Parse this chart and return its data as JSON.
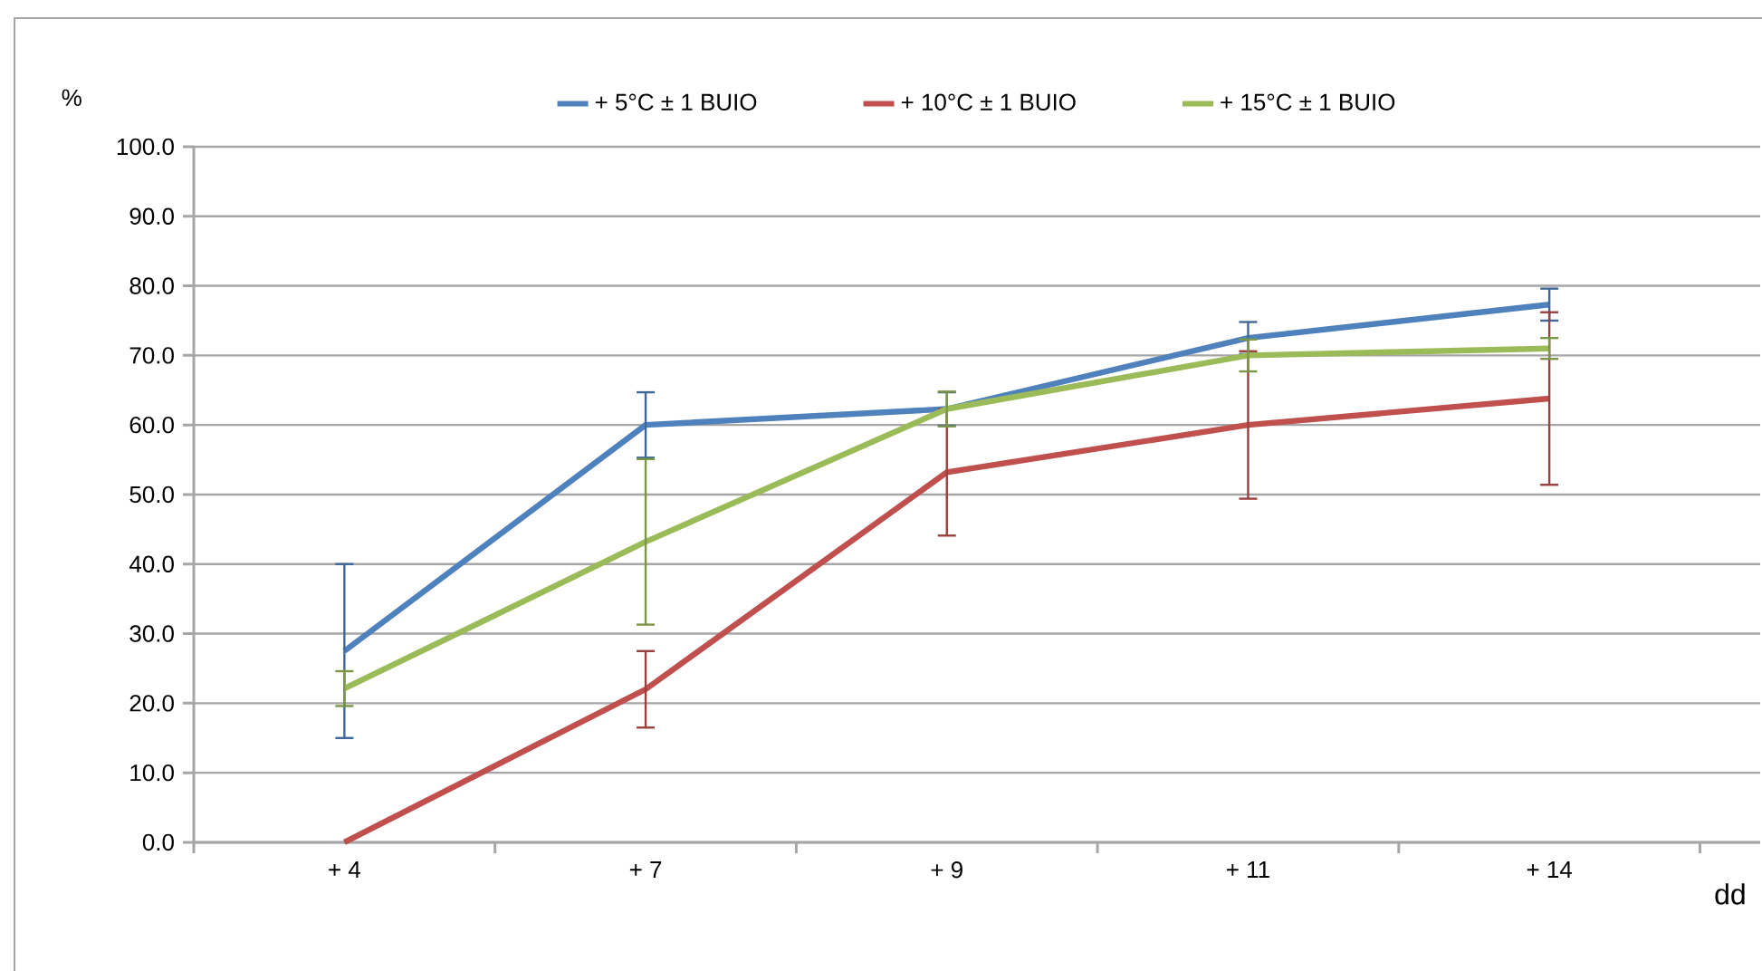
{
  "chart_data": {
    "type": "line",
    "xlabel": "dd",
    "ylabel": "%",
    "categories": [
      "+ 4",
      "+ 7",
      "+ 9",
      "+ 11",
      "+ 14"
    ],
    "series": [
      {
        "name": "+ 5°C ± 1 BUIO",
        "color": "#4f81bd",
        "values": [
          27.5,
          60.0,
          62.3,
          72.5,
          77.3
        ],
        "errors": [
          12.5,
          4.7,
          2.4,
          2.3,
          2.3
        ]
      },
      {
        "name": "+ 10°C ± 1 BUIO",
        "color": "#c0504d",
        "values": [
          0.0,
          22.0,
          53.2,
          60.0,
          63.8
        ],
        "errors": [
          null,
          5.5,
          9.1,
          10.6,
          12.4
        ]
      },
      {
        "name": "+ 15°C ± 1 BUIO",
        "color": "#9bbb59",
        "values": [
          22.1,
          43.2,
          62.3,
          70.0,
          71.0
        ],
        "errors": [
          2.5,
          11.9,
          2.5,
          2.3,
          1.5
        ]
      }
    ],
    "ylim": [
      0,
      100
    ],
    "yticks": [
      {
        "value": 0,
        "label": "0.0"
      },
      {
        "value": 10,
        "label": "10.0"
      },
      {
        "value": 20,
        "label": "20.0"
      },
      {
        "value": 30,
        "label": "30.0"
      },
      {
        "value": 40,
        "label": "40.0"
      },
      {
        "value": 50,
        "label": "50.0"
      },
      {
        "value": 60,
        "label": "60.0"
      },
      {
        "value": 70,
        "label": "70.0"
      },
      {
        "value": 80,
        "label": "80.0"
      },
      {
        "value": 90,
        "label": "90.0"
      },
      {
        "value": 100,
        "label": "100.0"
      }
    ],
    "grid": "y",
    "legend": "top",
    "marker": "none",
    "line_style": "solid"
  }
}
